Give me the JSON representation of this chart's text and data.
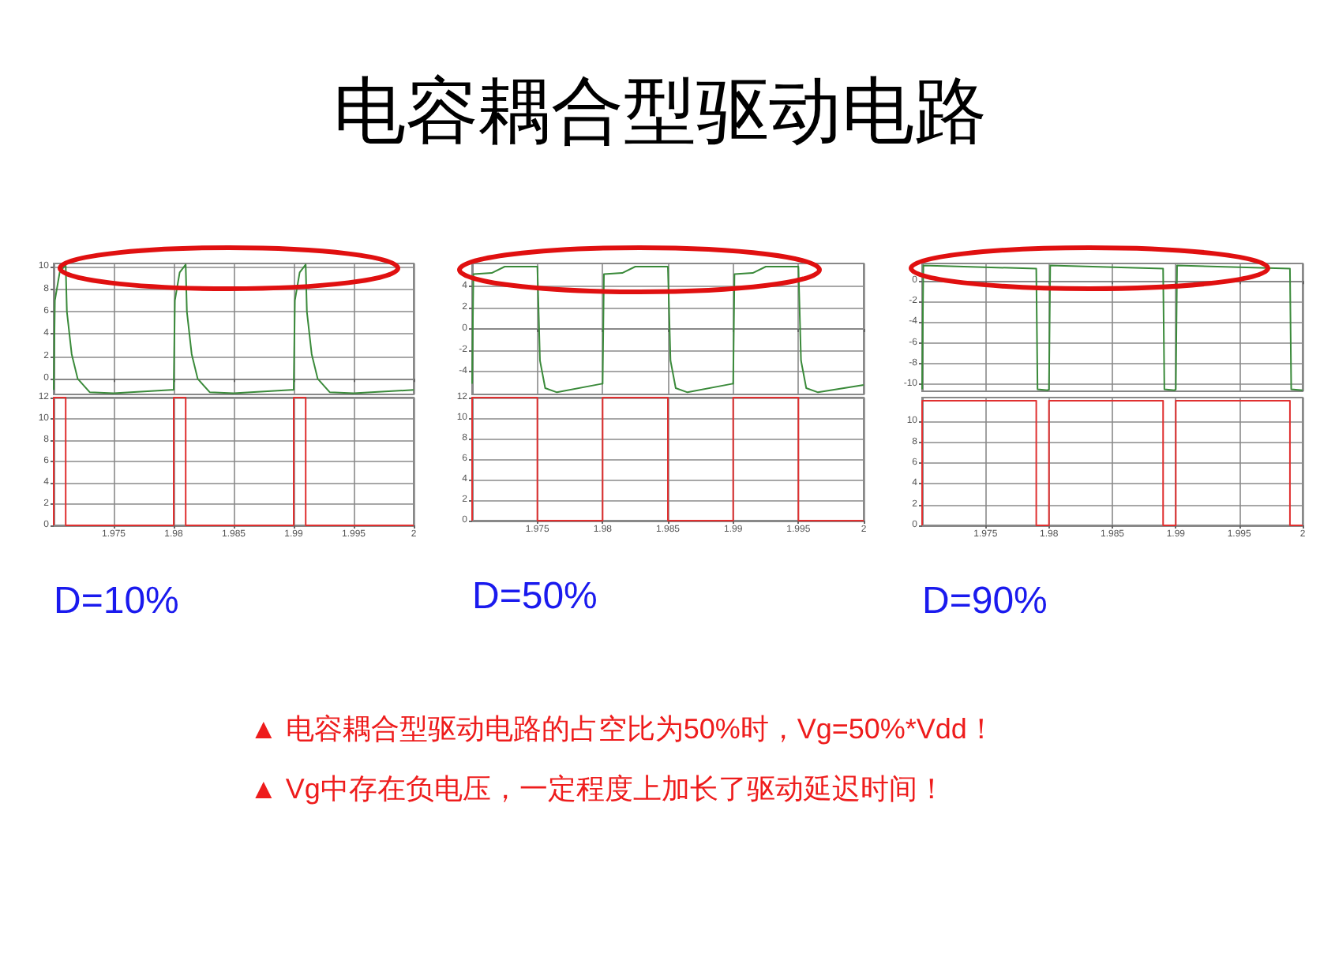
{
  "chart_data": [
    {
      "type": "other",
      "title": "电容耦合型驱动电路"
    },
    {
      "type": "line",
      "x": [
        1.97,
        1.9701,
        1.9705,
        1.971,
        1.9711,
        1.9715,
        1.972,
        1.973,
        1.975,
        1.9798,
        1.98,
        1.9801,
        1.9805,
        1.981,
        1.9811,
        1.9815,
        1.982,
        1.983,
        1.985,
        1.9898,
        1.99,
        1.9901,
        1.9905,
        1.991,
        1.9911,
        1.9915,
        1.992,
        1.993,
        1.995,
        2
      ],
      "series": [
        {
          "color": "#3a8a3a",
          "values": [
            -1.0,
            7,
            9.5,
            10.2,
            6,
            2.2,
            0,
            -1.2,
            -1.3,
            -1.0,
            -1.0,
            7,
            9.5,
            10.2,
            6,
            2.2,
            0,
            -1.2,
            -1.3,
            -1.0,
            -1.0,
            7,
            9.5,
            10.2,
            6,
            2.2,
            0,
            -1.2,
            -1.3,
            -1.0
          ]
        }
      ],
      "xlim": [
        1.97,
        2
      ],
      "xticks": [
        1.975,
        1.98,
        1.985,
        1.99,
        1.995,
        2
      ],
      "ylim": [
        -1.4,
        10.3
      ],
      "yticks": [
        0,
        2,
        4,
        6,
        8,
        10
      ],
      "grid": true,
      "tick_labels": "y"
    },
    {
      "type": "line",
      "x": [
        1.97,
        1.97,
        1.971,
        1.971,
        1.98,
        1.98,
        1.981,
        1.981,
        1.99,
        1.99,
        1.991,
        1.991,
        2
      ],
      "series": [
        {
          "color": "#e03030",
          "values": [
            0,
            12,
            12,
            0,
            0,
            12,
            12,
            0,
            0,
            12,
            12,
            0,
            0
          ]
        }
      ],
      "xlim": [
        1.97,
        2
      ],
      "xticks": [
        1.975,
        1.98,
        1.985,
        1.99,
        1.995,
        2
      ],
      "ylim": [
        0,
        12
      ],
      "yticks": [
        0,
        2,
        4,
        6,
        8,
        10,
        12
      ],
      "grid": true,
      "xlabel": "D=10%"
    },
    {
      "type": "line",
      "x": [
        1.97,
        1.9701,
        1.9715,
        1.9725,
        1.975,
        1.9752,
        1.9756,
        1.9765,
        1.9799,
        1.98,
        1.9801,
        1.9815,
        1.9825,
        1.985,
        1.9852,
        1.9856,
        1.9865,
        1.9899,
        1.99,
        1.9901,
        1.9915,
        1.9925,
        1.995,
        1.9952,
        1.9956,
        1.9965,
        2
      ],
      "series": [
        {
          "color": "#3a8a3a",
          "values": [
            -5.2,
            5.2,
            5.3,
            5.9,
            5.9,
            -3,
            -5.6,
            -6.0,
            -5.2,
            -5.2,
            5.2,
            5.3,
            5.9,
            5.9,
            -3,
            -5.6,
            -6.0,
            -5.2,
            -5.2,
            5.2,
            5.3,
            5.9,
            5.9,
            -3,
            -5.6,
            -6.0,
            -5.3
          ]
        }
      ],
      "xlim": [
        1.97,
        2
      ],
      "xticks": [
        1.975,
        1.98,
        1.985,
        1.99,
        1.995,
        2
      ],
      "ylim": [
        -6.2,
        6.2
      ],
      "yticks": [
        -4,
        -2,
        0,
        2,
        4
      ],
      "grid": true,
      "tick_labels": "y"
    },
    {
      "type": "line",
      "x": [
        1.97,
        1.97,
        1.975,
        1.975,
        1.98,
        1.98,
        1.985,
        1.985,
        1.99,
        1.99,
        1.995,
        1.995,
        2
      ],
      "series": [
        {
          "color": "#e03030",
          "values": [
            0,
            12,
            12,
            0,
            0,
            12,
            12,
            0,
            0,
            12,
            12,
            0,
            0
          ]
        }
      ],
      "xlim": [
        1.97,
        2
      ],
      "xticks": [
        1.975,
        1.98,
        1.985,
        1.99,
        1.995,
        2
      ],
      "ylim": [
        0,
        12
      ],
      "yticks": [
        0,
        2,
        4,
        6,
        8,
        10,
        12
      ],
      "grid": true,
      "xlabel": "D=50%"
    },
    {
      "type": "line",
      "x": [
        1.97,
        1.9701,
        1.979,
        1.9791,
        1.9799,
        1.98,
        1.9801,
        1.989,
        1.9891,
        1.9899,
        1.99,
        1.9901,
        1.999,
        1.9991,
        2
      ],
      "series": [
        {
          "color": "#3a8a3a",
          "values": [
            -10.5,
            1.5,
            1.2,
            -10.5,
            -10.6,
            -10.5,
            1.5,
            1.2,
            -10.5,
            -10.6,
            -10.5,
            1.5,
            1.2,
            -10.5,
            -10.6
          ]
        }
      ],
      "xlim": [
        1.97,
        2
      ],
      "xticks": [
        1.975,
        1.98,
        1.985,
        1.99,
        1.995,
        2
      ],
      "ylim": [
        -10.7,
        1.7
      ],
      "yticks": [
        -10,
        -8,
        -6,
        -4,
        -2,
        0
      ],
      "grid": true,
      "tick_labels": "y"
    },
    {
      "type": "line",
      "x": [
        1.97,
        1.97,
        1.979,
        1.979,
        1.98,
        1.98,
        1.989,
        1.989,
        1.99,
        1.99,
        1.999,
        1.999,
        2
      ],
      "series": [
        {
          "color": "#e03030",
          "values": [
            0,
            12,
            12,
            0,
            0,
            12,
            12,
            0,
            0,
            12,
            12,
            0,
            0
          ]
        }
      ],
      "xlim": [
        1.97,
        2
      ],
      "xticks": [
        1.975,
        1.98,
        1.985,
        1.99,
        1.995,
        2
      ],
      "ylim": [
        0,
        12.3
      ],
      "yticks": [
        0,
        2,
        4,
        6,
        8,
        10
      ],
      "grid": true,
      "xlabel": "D=90%"
    },
    {
      "type": "other",
      "annotations": [
        "▲ 电容耦合型驱动电路的占空比为50%时，Vg=50%*Vdd！",
        "▲ Vg中存在负电压，一定程度上加长了驱动延迟时间！"
      ]
    }
  ]
}
